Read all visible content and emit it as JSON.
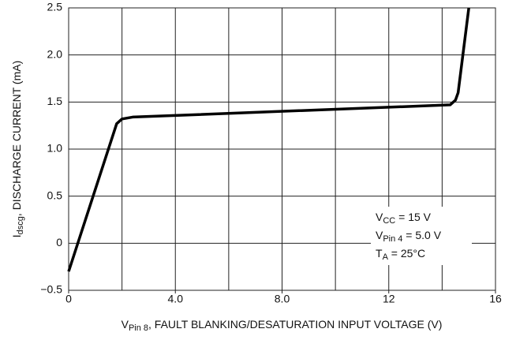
{
  "chart_data": {
    "type": "line",
    "x": [
      0,
      1.8,
      2.0,
      2.4,
      14.3,
      14.5,
      14.6,
      15.0
    ],
    "series": [
      {
        "name": null,
        "color": "#000000",
        "values": [
          -0.3,
          1.27,
          1.32,
          1.34,
          1.47,
          1.52,
          1.6,
          2.5
        ]
      }
    ],
    "xlim": [
      0,
      16
    ],
    "xticks": [
      0,
      {
        "value": 4,
        "label": "4.0"
      },
      {
        "value": 8,
        "label": "8.0"
      },
      12,
      16
    ],
    "xgrid": [
      2,
      4,
      6,
      8,
      10,
      12,
      14
    ],
    "ylim": [
      -0.5,
      2.5
    ],
    "yticks": [
      {
        "value": -0.5,
        "label": "−0.5"
      },
      0,
      0.5,
      {
        "value": 1,
        "label": "1.0"
      },
      1.5,
      {
        "value": 2,
        "label": "2.0"
      },
      2.5
    ],
    "grid": true,
    "xlabel": {
      "main": "V",
      "sub": "Pin 8",
      "rest": ", FAULT BLANKING/DESATURATION INPUT VOLTAGE (V)"
    },
    "ylabel": {
      "main": "I",
      "sub": "dscg",
      "rest": ", DISCHARGE CURRENT (mA)"
    },
    "annotations": [
      {
        "main": "V",
        "sub": "CC",
        "rest": " = 15 V"
      },
      {
        "main": "V",
        "sub": "Pin 4",
        "rest": " = 5.0 V"
      },
      {
        "main": "T",
        "sub": "A",
        "rest": " = 25°C"
      }
    ]
  }
}
